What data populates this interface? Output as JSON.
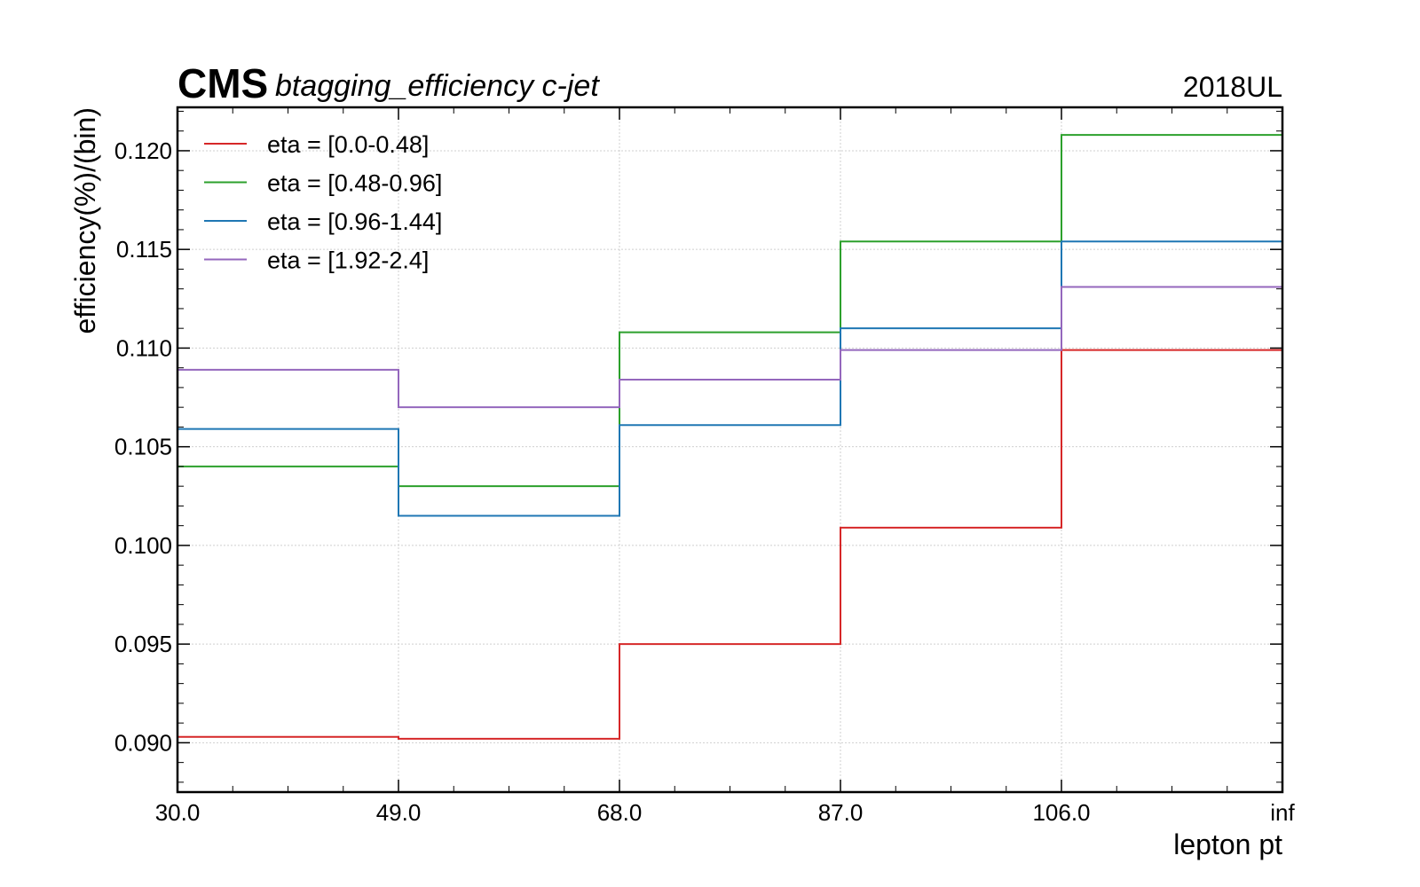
{
  "header": {
    "experiment": "CMS",
    "subtitle": "btagging_efficiency c-jet",
    "year": "2018UL"
  },
  "chart_data": {
    "type": "line",
    "drawstyle": "steps-post",
    "xlabel": "lepton pt",
    "ylabel": "efficiency(%)/(bin)",
    "x_bins": [
      "30.0",
      "49.0",
      "68.0",
      "87.0",
      "106.0",
      "inf"
    ],
    "ylim": [
      0.0875,
      0.1222
    ],
    "yticks": [
      "0.090",
      "0.095",
      "0.100",
      "0.105",
      "0.110",
      "0.115",
      "0.120"
    ],
    "grid": true,
    "legend_position": "top-left",
    "series": [
      {
        "name": "eta = [0.0-0.48]",
        "color": "#d62728",
        "values": [
          0.0903,
          0.0902,
          0.095,
          0.1009,
          0.1099
        ]
      },
      {
        "name": "eta = [0.48-0.96]",
        "color": "#2ca02c",
        "values": [
          0.104,
          0.103,
          0.1108,
          0.1154,
          0.1208
        ]
      },
      {
        "name": "eta = [0.96-1.44]",
        "color": "#1f77b4",
        "values": [
          0.1059,
          0.1015,
          0.1061,
          0.111,
          0.1154
        ]
      },
      {
        "name": "eta = [1.92-2.4]",
        "color": "#9467bd",
        "values": [
          0.1089,
          0.107,
          0.1084,
          0.1099,
          0.1131
        ]
      }
    ]
  }
}
